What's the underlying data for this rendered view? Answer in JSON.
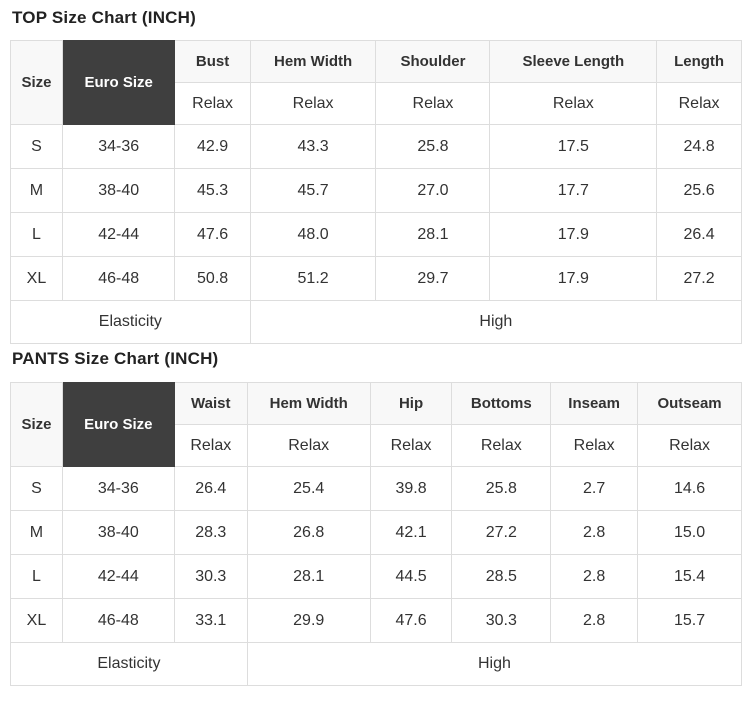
{
  "colors": {
    "title_text": "#222222",
    "body_text": "#333333",
    "border": "#dddddd",
    "cell_bg": "#ffffff",
    "header_light_bg": "#f8f8f8",
    "header_dark_bg": "#3f3f3f",
    "header_dark_text": "#ffffff"
  },
  "tables": [
    {
      "title": "TOP Size Chart (INCH)",
      "size_header": "Size",
      "euro_header": "Euro Size",
      "fit_label": "Relax",
      "measure_columns": [
        "Bust",
        "Hem Width",
        "Shoulder",
        "Sleeve Length",
        "Length"
      ],
      "rows": [
        {
          "size": "S",
          "euro": "34-36",
          "values": [
            "42.9",
            "43.3",
            "25.8",
            "17.5",
            "24.8"
          ]
        },
        {
          "size": "M",
          "euro": "38-40",
          "values": [
            "45.3",
            "45.7",
            "27.0",
            "17.7",
            "25.6"
          ]
        },
        {
          "size": "L",
          "euro": "42-44",
          "values": [
            "47.6",
            "48.0",
            "28.1",
            "17.9",
            "26.4"
          ]
        },
        {
          "size": "XL",
          "euro": "46-48",
          "values": [
            "50.8",
            "51.2",
            "29.7",
            "17.9",
            "27.2"
          ]
        }
      ],
      "elasticity_label": "Elasticity",
      "elasticity_value": "High"
    },
    {
      "title": "PANTS Size Chart (INCH)",
      "size_header": "Size",
      "euro_header": "Euro Size",
      "fit_label": "Relax",
      "measure_columns": [
        "Waist",
        "Hem Width",
        "Hip",
        "Bottoms",
        "Inseam",
        "Outseam"
      ],
      "rows": [
        {
          "size": "S",
          "euro": "34-36",
          "values": [
            "26.4",
            "25.4",
            "39.8",
            "25.8",
            "2.7",
            "14.6"
          ]
        },
        {
          "size": "M",
          "euro": "38-40",
          "values": [
            "28.3",
            "26.8",
            "42.1",
            "27.2",
            "2.8",
            "15.0"
          ]
        },
        {
          "size": "L",
          "euro": "42-44",
          "values": [
            "30.3",
            "28.1",
            "44.5",
            "28.5",
            "2.8",
            "15.4"
          ]
        },
        {
          "size": "XL",
          "euro": "46-48",
          "values": [
            "33.1",
            "29.9",
            "47.6",
            "30.3",
            "2.8",
            "15.7"
          ]
        }
      ],
      "elasticity_label": "Elasticity",
      "elasticity_value": "High"
    }
  ]
}
